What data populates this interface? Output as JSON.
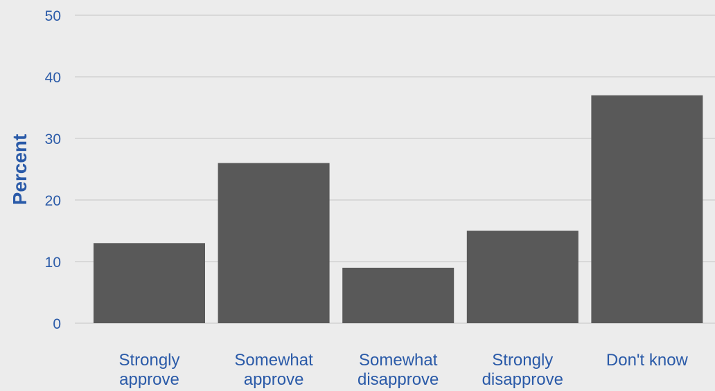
{
  "chart_data": {
    "type": "bar",
    "categories": [
      [
        "Strongly",
        "approve"
      ],
      [
        "Somewhat",
        "approve"
      ],
      [
        "Somewhat",
        "disapprove"
      ],
      [
        "Strongly",
        "disapprove"
      ],
      [
        "Don't know"
      ]
    ],
    "values": [
      13,
      26,
      9,
      15,
      37
    ],
    "title": "",
    "xlabel": "",
    "ylabel": "Percent",
    "ylim": [
      0,
      50
    ],
    "yticks": [
      0,
      10,
      20,
      30,
      40,
      50
    ],
    "grid": true,
    "colors": {
      "bar": "#595959",
      "background": "#ececec",
      "grid": "#d8d8d8",
      "text": "#2a5aa8"
    }
  }
}
